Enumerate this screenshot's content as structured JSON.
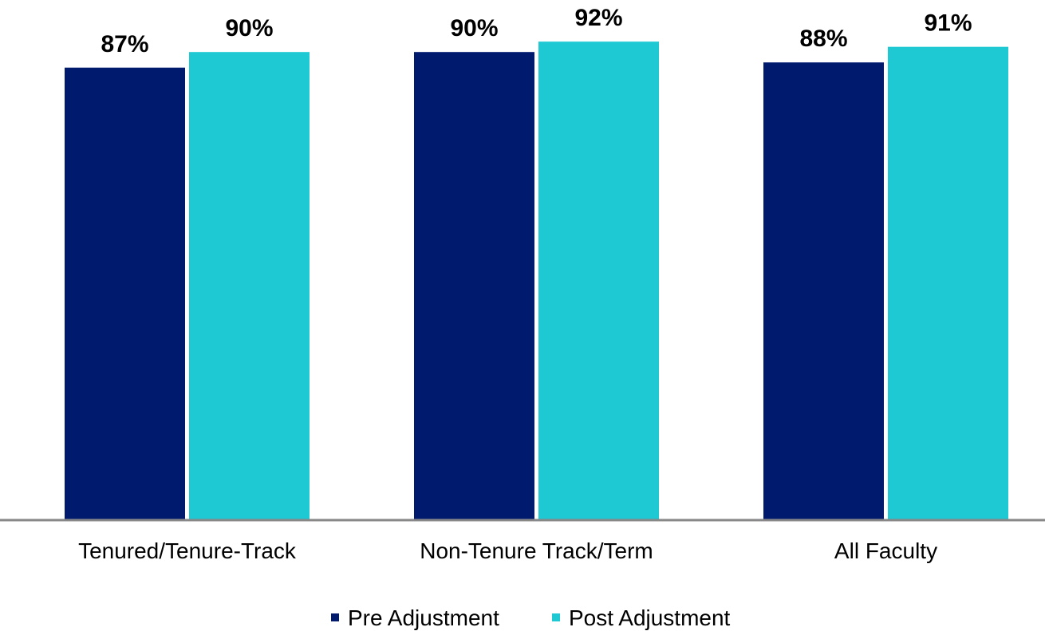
{
  "chart_data": {
    "type": "bar",
    "categories": [
      "Tenured/Tenure-Track",
      "Non-Tenure Track/Term",
      "All Faculty"
    ],
    "series": [
      {
        "name": "Pre Adjustment",
        "values": [
          87,
          90,
          88
        ],
        "labels": [
          "87%",
          "90%",
          "88%"
        ],
        "color": "#001b6e"
      },
      {
        "name": "Post Adjustment",
        "values": [
          90,
          92,
          91
        ],
        "labels": [
          "90%",
          "92%",
          "91%"
        ],
        "color": "#1ec9d3"
      }
    ],
    "title": "",
    "xlabel": "",
    "ylabel": "",
    "ylim": [
      0,
      100
    ],
    "grid": false,
    "legend_position": "bottom-center",
    "axis_color": "#888888"
  }
}
